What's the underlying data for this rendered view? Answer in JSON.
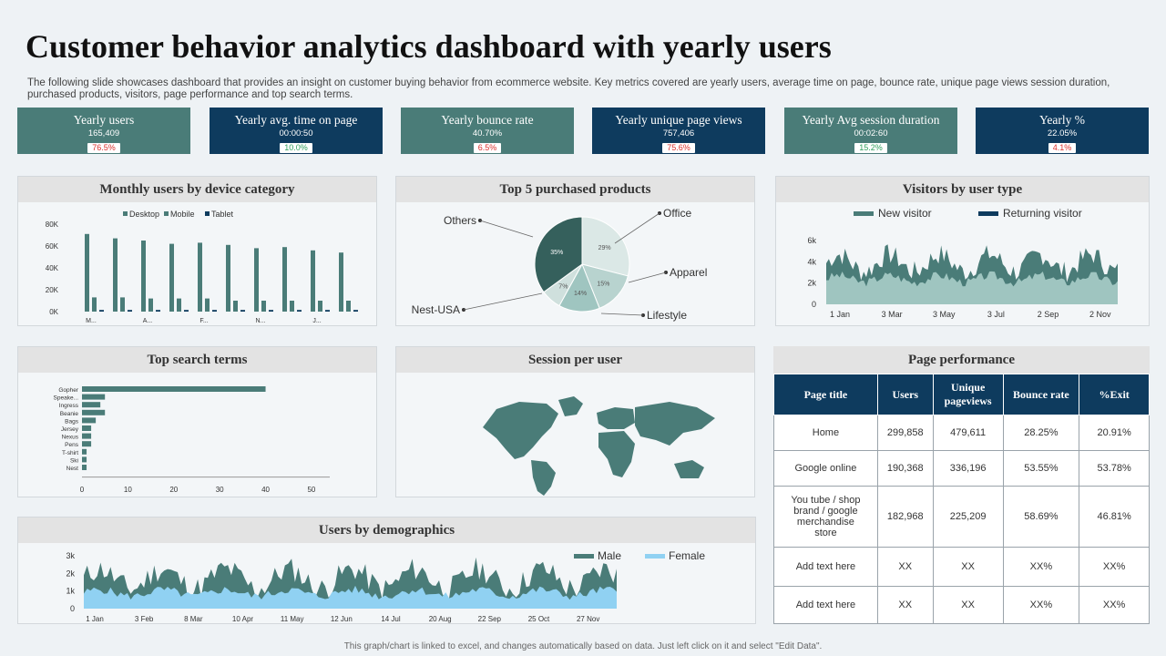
{
  "page": {
    "title": "Customer behavior analytics dashboard with yearly users",
    "subtitle": "The following slide showcases dashboard that provides an insight on customer buying behavior from ecommerce website. Key metrics covered are yearly users, average time on page, bounce rate, unique page views session duration, purchased products, visitors, page performance and top search terms.",
    "footer": "This graph/chart is linked to excel, and changes automatically based on data. Just left click on it and select \"Edit Data\"."
  },
  "colors": {
    "teal": "#4a7c78",
    "navy": "#0e3b5e",
    "light": "#9fc5c0",
    "female": "#90d1f2"
  },
  "kpis": [
    {
      "title": "Yearly users",
      "value": "165,409",
      "badge": "76.5%",
      "trend": "red",
      "bg": "#4a7c78"
    },
    {
      "title": "Yearly avg. time on page",
      "value": "00:00:50",
      "badge": "10.0%",
      "trend": "green",
      "bg": "#0e3b5e"
    },
    {
      "title": "Yearly bounce rate",
      "value": "40.70%",
      "badge": "6.5%",
      "trend": "red",
      "bg": "#4a7c78"
    },
    {
      "title": "Yearly unique page views",
      "value": "757,406",
      "badge": "75.6%",
      "trend": "red",
      "bg": "#0e3b5e"
    },
    {
      "title": "Yearly Avg session duration",
      "value": "00:02:60",
      "badge": "15.2%",
      "trend": "green",
      "bg": "#4a7c78"
    },
    {
      "title": "Yearly %",
      "value": "22.05%",
      "badge": "4.1%",
      "trend": "red",
      "bg": "#0e3b5e"
    }
  ],
  "panels": {
    "monthly": "Monthly users by device category",
    "top5": "Top 5 purchased products",
    "visitors": "Visitors by user type",
    "search": "Top search terms",
    "session": "Session per user",
    "pageperf": "Page performance",
    "demo": "Users by demographics"
  },
  "chart_data": [
    {
      "id": "monthly",
      "type": "bar",
      "legend": [
        "Desktop",
        "Mobile",
        "Tablet"
      ],
      "categories": [
        "M...",
        "",
        "A...",
        "",
        "F...",
        "",
        "N...",
        "",
        "J...",
        ""
      ],
      "series": [
        {
          "name": "Desktop",
          "values": [
            71000,
            67000,
            65000,
            62000,
            63000,
            61000,
            58000,
            59000,
            56000,
            54000
          ]
        },
        {
          "name": "Mobile",
          "values": [
            13000,
            13000,
            12000,
            12000,
            12000,
            10000,
            10000,
            10000,
            10000,
            10000
          ]
        },
        {
          "name": "Tablet",
          "values": [
            1500,
            1500,
            1500,
            1500,
            1500,
            1500,
            1500,
            1500,
            1500,
            1500
          ]
        }
      ],
      "ylim": [
        0,
        80000
      ],
      "yticks": [
        "0K",
        "20K",
        "40K",
        "60K",
        "80K"
      ]
    },
    {
      "id": "top5",
      "type": "pie",
      "labels": [
        "Office",
        "Apparel",
        "Lifestyle",
        "Nest-USA",
        "Others"
      ],
      "values": [
        29,
        15,
        14,
        7,
        35
      ],
      "slice_labels": [
        "29%",
        "15%",
        "14%",
        "7%",
        "35%"
      ]
    },
    {
      "id": "visitors",
      "type": "area",
      "series": [
        "New visitor",
        "Returning visitor"
      ],
      "xticks": [
        "1 Jan",
        "3 Mar",
        "3 May",
        "3 Jul",
        "2 Sep",
        "2 Nov"
      ],
      "yticks": [
        "0",
        "2k",
        "4k",
        "6k"
      ],
      "ylim": [
        0,
        6500
      ]
    },
    {
      "id": "search",
      "type": "bar",
      "categories": [
        "Gopher",
        "Speake...",
        "Ingress",
        "Beanie",
        "Bags",
        "Jersey",
        "Nexus",
        "Pens",
        "T-shirt",
        "Ski",
        "Nest"
      ],
      "values": [
        40,
        5,
        4,
        5,
        3,
        2,
        2,
        2,
        1,
        1,
        1
      ],
      "xticks": [
        "0",
        "10",
        "20",
        "30",
        "40",
        "50"
      ],
      "xlim": [
        0,
        52
      ]
    },
    {
      "id": "demo",
      "type": "area",
      "series": [
        "Male",
        "Female"
      ],
      "xticks": [
        "1 Jan",
        "3 Feb",
        "8 Mar",
        "10 Apr",
        "11 May",
        "12 Jun",
        "14 Jul",
        "20 Aug",
        "22 Sep",
        "25 Oct",
        "27 Nov"
      ],
      "yticks": [
        "0",
        "1k",
        "2k",
        "3k"
      ],
      "ylim": [
        0,
        3200
      ]
    }
  ],
  "page_performance": {
    "headers": [
      "Page title",
      "Users",
      "Unique pageviews",
      "Bounce rate",
      "%Exit"
    ],
    "rows": [
      [
        "Home",
        "299,858",
        "479,611",
        "28.25%",
        "20.91%"
      ],
      [
        "Google online",
        "190,368",
        "336,196",
        "53.55%",
        "53.78%"
      ],
      [
        "You tube / shop brand / google merchandise store",
        "182,968",
        "225,209",
        "58.69%",
        "46.81%"
      ],
      [
        "Add text here",
        "XX",
        "XX",
        "XX%",
        "XX%"
      ],
      [
        "Add text here",
        "XX",
        "XX",
        "XX%",
        "XX%"
      ]
    ]
  }
}
